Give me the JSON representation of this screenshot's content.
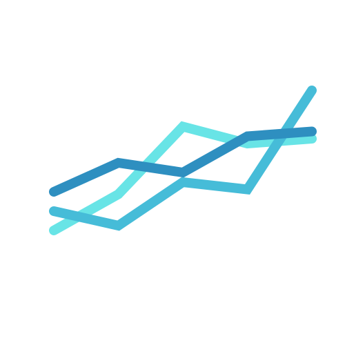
{
  "icon": "line-chart-icon",
  "colors": {
    "light": "#68E4E6",
    "mid": "#46BCD8",
    "dark": "#2E8FC0",
    "background": "#FFFFFF"
  },
  "chart_data": {
    "type": "line",
    "title": "",
    "xlabel": "",
    "ylabel": "",
    "grid": false,
    "x": [
      1,
      2,
      3,
      4,
      5
    ],
    "xlim": [
      1,
      5
    ],
    "ylim": [
      0,
      10
    ],
    "series": [
      {
        "color": "#68E4E6",
        "values": [
          1.6,
          3.1,
          5.9,
          5.2,
          5.4
        ]
      },
      {
        "color": "#46BCD8",
        "values": [
          2.4,
          1.8,
          3.6,
          3.3,
          7.4
        ]
      },
      {
        "color": "#2E8FC0",
        "values": [
          3.2,
          4.4,
          4.0,
          5.5,
          5.7
        ]
      }
    ]
  }
}
